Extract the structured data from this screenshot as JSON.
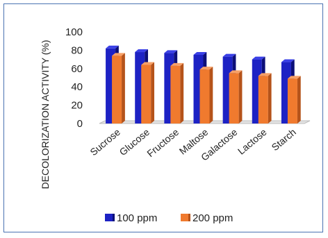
{
  "chart_data": {
    "type": "bar",
    "ylabel": "DECOLORIZATION ACTIVITY (%)",
    "ylim": [
      0,
      100
    ],
    "yticks": [
      0,
      20,
      40,
      60,
      80,
      100
    ],
    "categories": [
      "Sucrose",
      "Glucose",
      "Fructose",
      "Maltose",
      "Galactose",
      "Lactose",
      "Starch"
    ],
    "series": [
      {
        "name": "100 ppm",
        "values": [
          82,
          78,
          77,
          75,
          73,
          70,
          67
        ]
      },
      {
        "name": "200 ppm",
        "values": [
          74,
          64,
          63,
          59,
          55,
          52,
          49
        ]
      }
    ],
    "colors": {
      "s1_front": "#1d22c4",
      "s1_side": "#0c0f78",
      "s1_top": "#3a40e6",
      "s2_front": "#f07a2e",
      "s2_side": "#b5531a",
      "s2_top": "#f7a066",
      "floor": "#bdbdbd"
    },
    "legend_position": "bottom",
    "grid": false
  }
}
